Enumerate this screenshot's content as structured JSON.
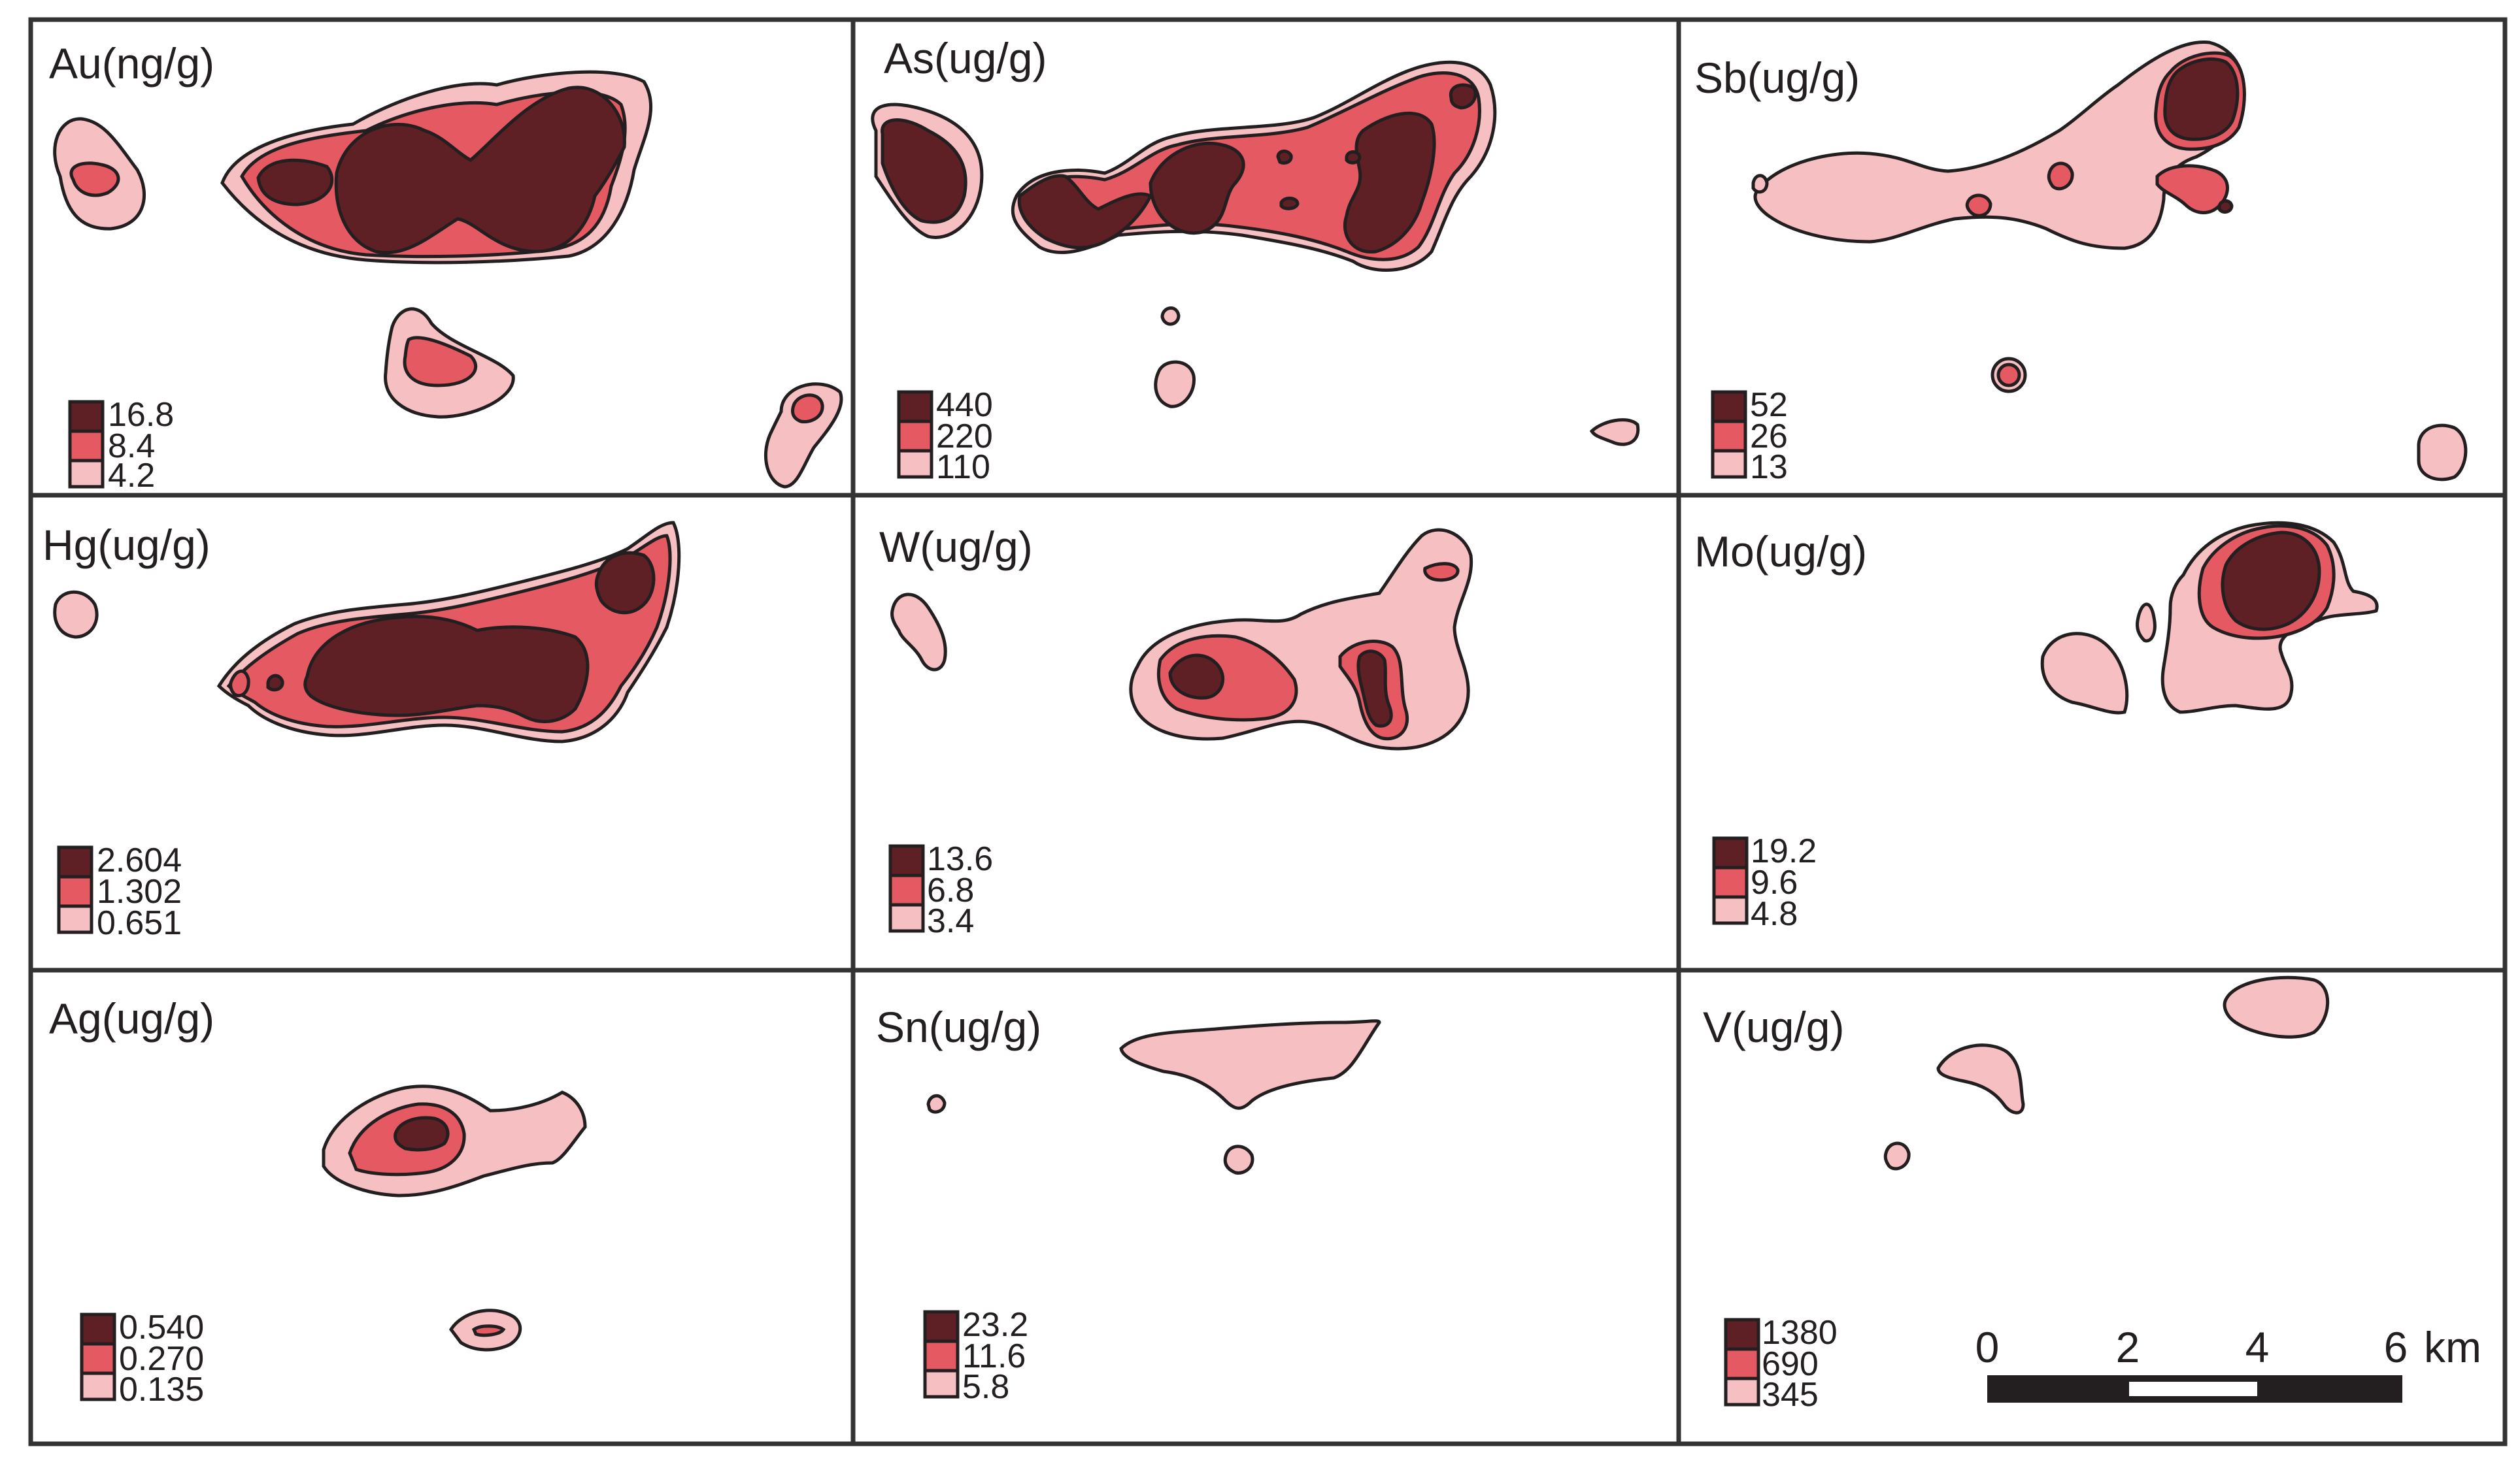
{
  "colors": {
    "high": "#5e2024",
    "mid": "#e55a62",
    "low": "#f6c0c3",
    "line": "#231f20",
    "frame": "#333333"
  },
  "panels": [
    {
      "key": "au",
      "title": "Au(ng/g)",
      "legend": [
        "16.8",
        "8.4",
        "4.2"
      ]
    },
    {
      "key": "as",
      "title": "As(ug/g)",
      "legend": [
        "440",
        "220",
        "110"
      ]
    },
    {
      "key": "sb",
      "title": "Sb(ug/g)",
      "legend": [
        "52",
        "26",
        "13"
      ]
    },
    {
      "key": "hg",
      "title": "Hg(ug/g)",
      "legend": [
        "2.604",
        "1.302",
        "0.651"
      ]
    },
    {
      "key": "w",
      "title": "W(ug/g)",
      "legend": [
        "13.6",
        "6.8",
        "3.4"
      ]
    },
    {
      "key": "mo",
      "title": "Mo(ug/g)",
      "legend": [
        "19.2",
        "9.6",
        "4.8"
      ]
    },
    {
      "key": "ag",
      "title": "Ag(ug/g)",
      "legend": [
        "0.540",
        "0.270",
        "0.135"
      ]
    },
    {
      "key": "sn",
      "title": "Sn(ug/g)",
      "legend": [
        "23.2",
        "11.6",
        "5.8"
      ]
    },
    {
      "key": "v",
      "title": "V(ug/g)",
      "legend": [
        "1380",
        "690",
        "345"
      ]
    }
  ],
  "scale_bar": {
    "ticks": [
      "0",
      "2",
      "4",
      "6"
    ],
    "unit": "km",
    "segments": [
      "black",
      "white",
      "black"
    ]
  }
}
